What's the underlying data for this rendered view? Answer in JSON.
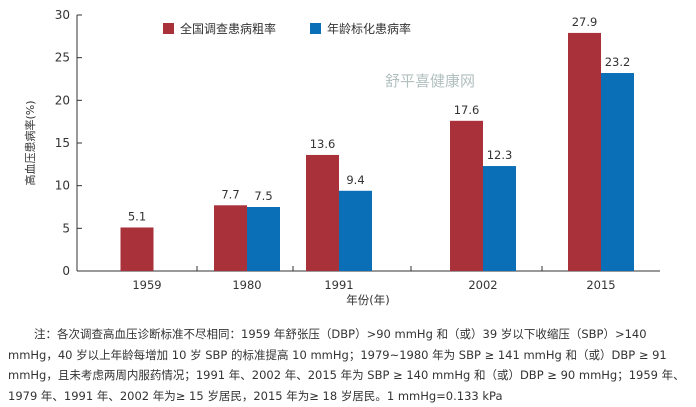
{
  "chart_data": {
    "type": "bar",
    "categories": [
      "1959",
      "1980",
      "1991",
      "2002",
      "2015"
    ],
    "series": [
      {
        "name": "全国调查患病粗率",
        "color": "#a8313a",
        "values": [
          5.1,
          7.7,
          13.6,
          17.6,
          27.9
        ]
      },
      {
        "name": "年龄标化患病率",
        "color": "#0a6fb6",
        "values": [
          null,
          7.5,
          9.4,
          12.3,
          23.2
        ]
      }
    ],
    "xlabel": "年份(年)",
    "ylabel": "高血压患病率(%)",
    "ylim": [
      0,
      30
    ],
    "yticks": [
      0,
      5,
      10,
      15,
      20,
      25,
      30
    ],
    "legend": "top",
    "grid": false
  },
  "note": "注：各次调查高血压诊断标准不尽相同：1959 年舒张压（DBP）>90 mmHg 和（或）39 岁以下收缩压（SBP）>140 mmHg，40 岁以上年龄每增加 10 岁 SBP 的标准提高 10 mmHg；1979~1980 年为 SBP ≥ 141 mmHg 和（或）DBP ≥ 91 mmHg，且未考虑两周内服药情况；1991 年、2002 年、2015 年为 SBP ≥ 140 mmHg 和（或）DBP ≥ 90 mmHg；1959 年、1979 年、1991 年、2002 年为≥ 15 岁居民，2015 年为≥ 18 岁居民。1 mmHg=0.133 kPa",
  "watermark": "舒平喜健康网"
}
